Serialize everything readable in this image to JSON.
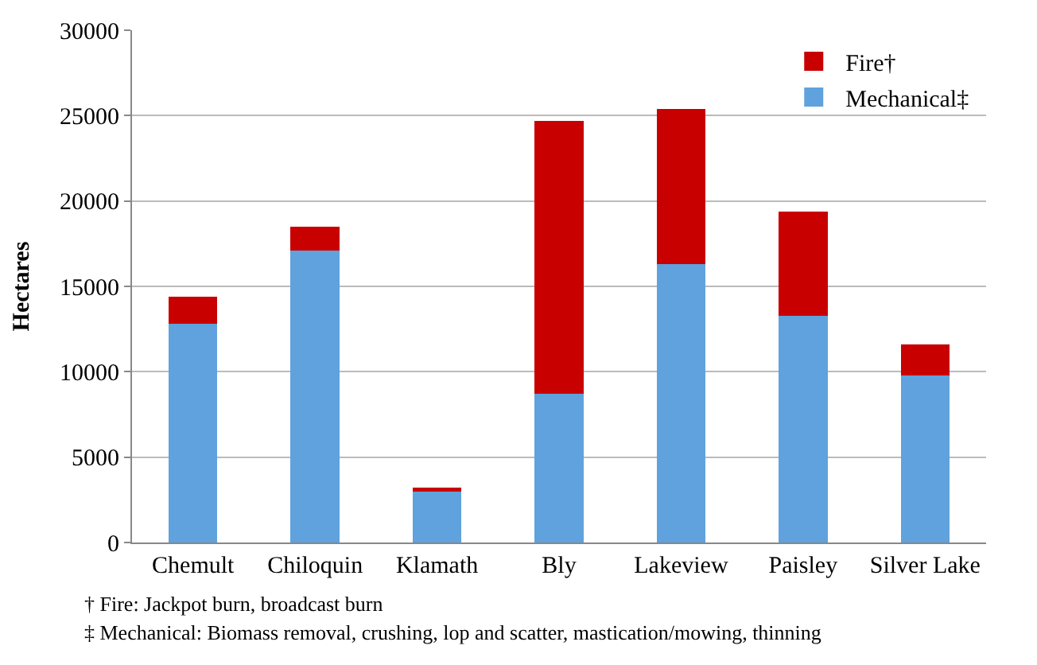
{
  "chart_data": {
    "type": "bar",
    "stacked": true,
    "ylabel": "Hectares",
    "categories": [
      "Chemult",
      "Chiloquin",
      "Klamath",
      "Bly",
      "Lakeview",
      "Paisley",
      "Silver Lake"
    ],
    "series": [
      {
        "name": "Mechanical‡",
        "color": "#5fa2dd",
        "values": [
          12800,
          17100,
          3000,
          8700,
          16300,
          13300,
          9800
        ]
      },
      {
        "name": "Fire†",
        "color": "#c80000",
        "values": [
          1600,
          1400,
          200,
          16000,
          9100,
          6100,
          1800
        ]
      }
    ],
    "ylim": [
      0,
      30000
    ],
    "yticks": [
      0,
      5000,
      10000,
      15000,
      20000,
      25000,
      30000
    ],
    "grid": "y",
    "legend": "top right",
    "annotations": [
      "† Fire: Jackpot burn, broadcast burn",
      "‡ Mechanical: Biomass removal, crushing, lop and scatter, mastication/mowing, thinning"
    ]
  }
}
